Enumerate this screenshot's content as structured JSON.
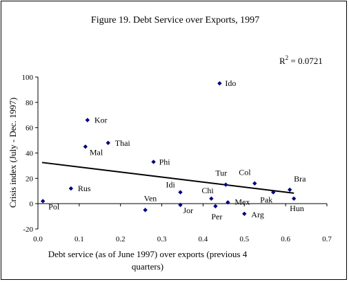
{
  "chart_data": {
    "type": "scatter",
    "title": "Figure 19. Debt Service over Exports, 1997",
    "xlabel_line1": "Debt service (as of June 1997) over exports (previous 4",
    "xlabel_line2": "quarters)",
    "ylabel": "Crisis index (July - Dec. 1997)",
    "r2_prefix": "R",
    "r2_exp": "2",
    "r2_value": " = 0.0721",
    "xlim": [
      0.0,
      0.7
    ],
    "ylim": [
      -20,
      100
    ],
    "x_ticks": [
      "0.0",
      "0.1",
      "0.2",
      "0.3",
      "0.4",
      "0.5",
      "0.6",
      "0.7"
    ],
    "y_ticks": [
      "-20",
      "0",
      "20",
      "40",
      "60",
      "80",
      "100"
    ],
    "marker_color": "#000080",
    "trendline": {
      "x": [
        0.01,
        0.62
      ],
      "y": [
        32.5,
        8.3
      ]
    },
    "points": [
      {
        "label": "Ido",
        "x": 0.44,
        "y": 95
      },
      {
        "label": "Kor",
        "x": 0.12,
        "y": 66
      },
      {
        "label": "Thai",
        "x": 0.17,
        "y": 48
      },
      {
        "label": "Mal",
        "x": 0.115,
        "y": 45
      },
      {
        "label": "Phi",
        "x": 0.28,
        "y": 33
      },
      {
        "label": "Rus",
        "x": 0.08,
        "y": 12
      },
      {
        "label": "Pol",
        "x": 0.012,
        "y": 2
      },
      {
        "label": "Ven",
        "x": 0.26,
        "y": -5
      },
      {
        "label": "Idi",
        "x": 0.345,
        "y": 9
      },
      {
        "label": "Jor",
        "x": 0.345,
        "y": -1
      },
      {
        "label": "Chi",
        "x": 0.42,
        "y": 4
      },
      {
        "label": "Per",
        "x": 0.43,
        "y": -2
      },
      {
        "label": "Tur",
        "x": 0.455,
        "y": 15
      },
      {
        "label": "Mex",
        "x": 0.46,
        "y": 1
      },
      {
        "label": "Arg",
        "x": 0.5,
        "y": -8
      },
      {
        "label": "Col",
        "x": 0.525,
        "y": 16
      },
      {
        "label": "Pak",
        "x": 0.57,
        "y": 9
      },
      {
        "label": "Bra",
        "x": 0.61,
        "y": 11
      },
      {
        "label": "Hun",
        "x": 0.62,
        "y": 4
      }
    ]
  }
}
